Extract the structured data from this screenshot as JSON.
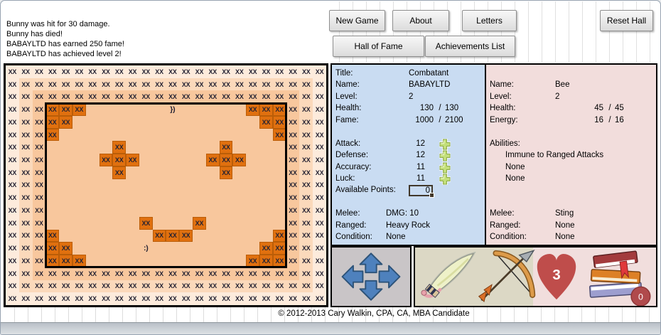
{
  "log": {
    "lines": [
      "Bunny was hit for 30 damage.",
      "Bunny has died!",
      "BABAYLTD has earned 250 fame!",
      "BABAYLTD has achieved level 2!"
    ]
  },
  "toolbar": {
    "new_game": "New Game",
    "about": "About",
    "letters": "Letters",
    "reset_hall": "Reset Hall",
    "hall_of_fame": "Hall of Fame",
    "achievements_list": "Achievements List"
  },
  "map": {
    "cols": 24,
    "rows": 19,
    "cell_glyph": "XX",
    "room": {
      "row_start": 3,
      "row_end": 15,
      "col_start": 3,
      "col_end": 20
    },
    "dark_cells": [
      [
        3,
        3
      ],
      [
        3,
        4
      ],
      [
        3,
        5
      ],
      [
        4,
        3
      ],
      [
        4,
        4
      ],
      [
        5,
        3
      ],
      [
        3,
        18
      ],
      [
        3,
        19
      ],
      [
        3,
        20
      ],
      [
        4,
        19
      ],
      [
        4,
        20
      ],
      [
        5,
        20
      ],
      [
        6,
        8
      ],
      [
        7,
        7
      ],
      [
        7,
        8
      ],
      [
        7,
        9
      ],
      [
        8,
        8
      ],
      [
        6,
        16
      ],
      [
        7,
        15
      ],
      [
        7,
        16
      ],
      [
        7,
        17
      ],
      [
        8,
        16
      ],
      [
        12,
        10
      ],
      [
        12,
        14
      ],
      [
        13,
        11
      ],
      [
        13,
        12
      ],
      [
        13,
        13
      ],
      [
        13,
        3
      ],
      [
        14,
        3
      ],
      [
        14,
        4
      ],
      [
        15,
        3
      ],
      [
        15,
        4
      ],
      [
        15,
        5
      ],
      [
        13,
        20
      ],
      [
        14,
        19
      ],
      [
        14,
        20
      ],
      [
        15,
        18
      ],
      [
        15,
        19
      ],
      [
        15,
        20
      ]
    ],
    "glyphs": [
      {
        "row": 3,
        "col": 12,
        "text": "})",
        "who": "enemy"
      },
      {
        "row": 14,
        "col": 10,
        "text": ":)",
        "who": "player"
      }
    ],
    "colors": {
      "ring0": "#fdebdc",
      "ring1": "#fbd9bb",
      "base": "#f8c79d",
      "dark": "#e0700f",
      "text": "#232132"
    }
  },
  "player": {
    "rows": [
      {
        "type": "text",
        "label": "Title:",
        "value": "Combatant"
      },
      {
        "type": "text",
        "label": "Name:",
        "value": "BABAYLTD"
      },
      {
        "type": "text",
        "label": "Level:",
        "value": "2"
      },
      {
        "type": "ratio",
        "label": "Health:",
        "n1": "130",
        "n2": "130"
      },
      {
        "type": "ratio",
        "label": "Fame:",
        "n1": "1000",
        "n2": "2100"
      },
      {
        "type": "blank"
      },
      {
        "type": "stat",
        "label": "Attack:",
        "value": "12"
      },
      {
        "type": "stat",
        "label": "Defense:",
        "value": "12"
      },
      {
        "type": "stat",
        "label": "Accuracy:",
        "value": "11"
      },
      {
        "type": "stat",
        "label": "Luck:",
        "value": "11"
      },
      {
        "type": "selected",
        "label": "Available Points:",
        "value": "0"
      },
      {
        "type": "blank"
      },
      {
        "type": "equip",
        "label": "Melee:",
        "value": "DMG: 10"
      },
      {
        "type": "equip",
        "label": "Ranged:",
        "value": "Heavy Rock"
      },
      {
        "type": "equip",
        "label": "Condition:",
        "value": "None"
      }
    ]
  },
  "enemy": {
    "rows": [
      {
        "type": "blank"
      },
      {
        "type": "text",
        "label": "Name:",
        "value": "Bee"
      },
      {
        "type": "text",
        "label": "Level:",
        "value": "2"
      },
      {
        "type": "ratio",
        "label": "Health:",
        "n1": "45",
        "n2": "45"
      },
      {
        "type": "ratio",
        "label": "Energy:",
        "n1": "16",
        "n2": "16"
      },
      {
        "type": "blank"
      },
      {
        "type": "header",
        "label": "Abilities:"
      },
      {
        "type": "ability",
        "value": "Immune to Ranged Attacks"
      },
      {
        "type": "ability",
        "value": "None"
      },
      {
        "type": "ability",
        "value": "None"
      },
      {
        "type": "blank"
      },
      {
        "type": "blank"
      },
      {
        "type": "equip2",
        "label": "Melee:",
        "value": "Sting"
      },
      {
        "type": "equip2",
        "label": "Ranged:",
        "value": "None"
      },
      {
        "type": "equip2",
        "label": "Condition:",
        "value": "None"
      }
    ]
  },
  "hud": {
    "hearts": "3",
    "books": "0",
    "icons": {
      "dpad": [
        "arrow-up",
        "arrow-left",
        "arrow-right",
        "arrow-down"
      ],
      "melee": "sword",
      "ranged": "bow-and-arrow",
      "lives": "heart",
      "inventory": "book-stack"
    }
  },
  "colors": {
    "player_panel_bg": "#c9dcf2",
    "enemy_panel_bg": "#f2dddc",
    "dpad_bg": "#c9c5c7",
    "weapons_bg": "#dcd8c5",
    "weapons_pink_bg": "#f1dedd",
    "arrow_blue": "#4e81bd",
    "heart_red": "#bf4d4b",
    "plus_green": "#c3df7a"
  },
  "footer": {
    "copyright": "© 2012-2013 Cary Walkin, CPA, CA, MBA Candidate"
  }
}
